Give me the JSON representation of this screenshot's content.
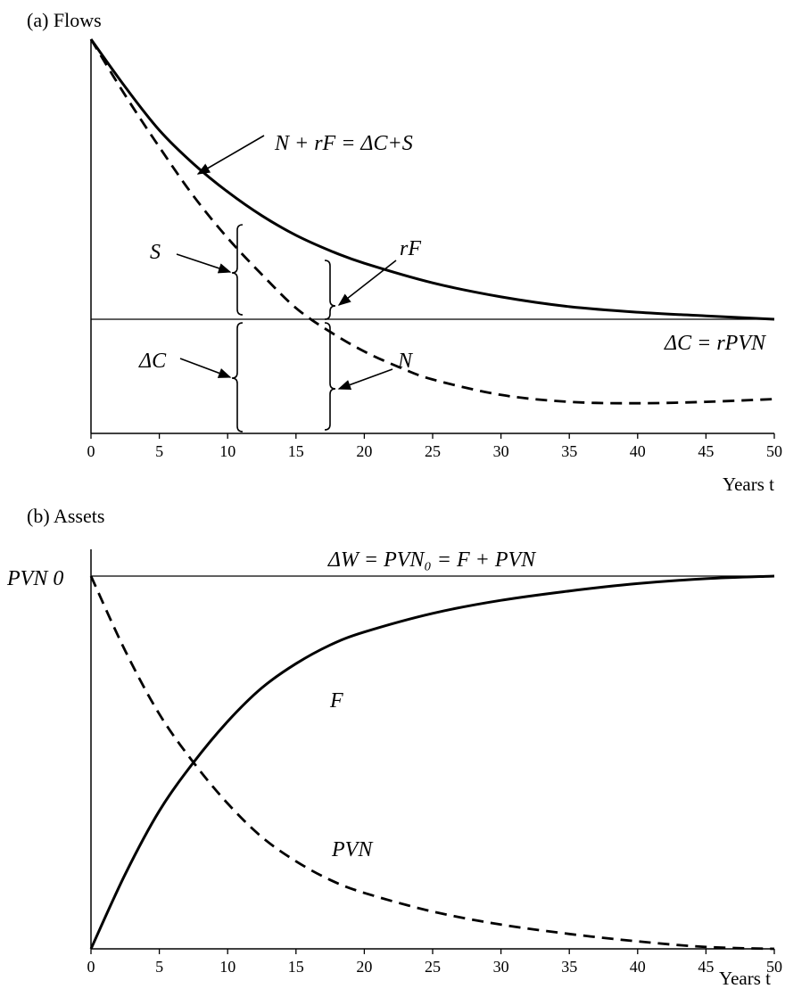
{
  "chart_data": [
    {
      "type": "line",
      "panel_title": "(a) Flows",
      "xlabel": "Years t",
      "xlim": [
        0,
        50
      ],
      "x_ticks": [
        "0",
        "5",
        "10",
        "15",
        "20",
        "25",
        "30",
        "35",
        "40",
        "45",
        "50"
      ],
      "y_ticks": [],
      "series": [
        {
          "label_text": "N + rF = ΔC+S",
          "style": "solid",
          "x": [
            0,
            2.5,
            5,
            7.5,
            10,
            12.5,
            15,
            17.5,
            20,
            25,
            30,
            35,
            40,
            45,
            50
          ],
          "y": [
            1.0,
            0.83,
            0.675,
            0.555,
            0.455,
            0.37,
            0.3,
            0.245,
            0.2,
            0.13,
            0.08,
            0.045,
            0.025,
            0.012,
            0.0
          ]
        },
        {
          "label_text": "N",
          "style": "dashed",
          "x": [
            0,
            2.5,
            5,
            7.5,
            10,
            12.5,
            15,
            17.5,
            20,
            22.5,
            25,
            30,
            35,
            40,
            45,
            50
          ],
          "y": [
            1.0,
            0.8,
            0.615,
            0.44,
            0.29,
            0.16,
            0.04,
            -0.045,
            -0.115,
            -0.17,
            -0.215,
            -0.27,
            -0.295,
            -0.3,
            -0.295,
            -0.285
          ]
        }
      ],
      "reference_line": {
        "y": 0,
        "label": "ΔC = rPVN"
      },
      "annotations": [
        "S",
        "ΔC",
        "rF",
        "N"
      ]
    },
    {
      "type": "line",
      "panel_title": "(b) Assets",
      "xlabel": "Years t",
      "xlim": [
        0,
        50
      ],
      "x_ticks": [
        "0",
        "5",
        "10",
        "15",
        "20",
        "25",
        "30",
        "35",
        "40",
        "45",
        "50"
      ],
      "y_tick_label": "PVN 0",
      "series": [
        {
          "label_text": "F",
          "style": "solid",
          "x": [
            0,
            2.5,
            5,
            7.5,
            10,
            12.5,
            15,
            17.5,
            20,
            25,
            30,
            35,
            40,
            45,
            50
          ],
          "y": [
            0.0,
            0.2,
            0.37,
            0.5,
            0.61,
            0.7,
            0.765,
            0.815,
            0.85,
            0.9,
            0.935,
            0.96,
            0.98,
            0.993,
            1.0
          ]
        },
        {
          "label_text": "PVN",
          "style": "dashed",
          "x": [
            0,
            2.5,
            5,
            7.5,
            10,
            12.5,
            15,
            17.5,
            20,
            25,
            30,
            35,
            40,
            45,
            50
          ],
          "y": [
            1.0,
            0.8,
            0.63,
            0.5,
            0.39,
            0.3,
            0.235,
            0.185,
            0.15,
            0.1,
            0.065,
            0.04,
            0.02,
            0.005,
            0.0
          ]
        }
      ],
      "reference_line": {
        "y": 1,
        "label": "ΔW = PVN₀ = F + PVN"
      }
    }
  ]
}
